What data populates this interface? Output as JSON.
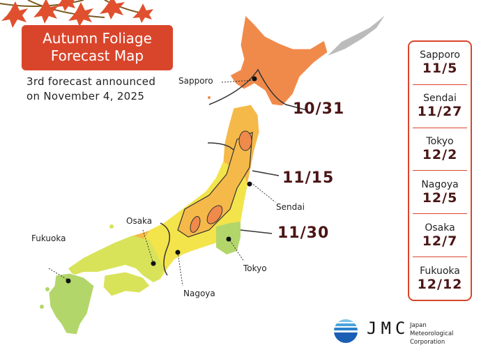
{
  "title": {
    "line1": "Autumn Foliage",
    "line2": "Forecast Map"
  },
  "subtitle": {
    "line1": "3rd forecast announced",
    "line2": "on November 4, 2025"
  },
  "map_labels": {
    "sapporo": "Sapporo",
    "sendai": "Sendai",
    "tokyo": "Tokyo",
    "nagoya": "Nagoya",
    "osaka": "Osaka",
    "fukuoka": "Fukuoka"
  },
  "isolines": [
    "10/31",
    "11/15",
    "11/30"
  ],
  "forecast": [
    {
      "city": "Sapporo",
      "date": "11/5"
    },
    {
      "city": "Sendai",
      "date": "11/27"
    },
    {
      "city": "Tokyo",
      "date": "12/2"
    },
    {
      "city": "Nagoya",
      "date": "12/5"
    },
    {
      "city": "Osaka",
      "date": "12/7"
    },
    {
      "city": "Fukuoka",
      "date": "12/12"
    }
  ],
  "logo": {
    "brand": "JMC",
    "line1": "Japan Meteorological",
    "line2": "Corporation"
  },
  "colors": {
    "accent": "#d9452b",
    "date_text": "#4a1515",
    "zone_early": "#f08a4b",
    "zone_mid": "#f5b94a",
    "zone_late": "#f3e44b",
    "zone_later": "#d8e35a",
    "zone_latest": "#b3d66b"
  }
}
